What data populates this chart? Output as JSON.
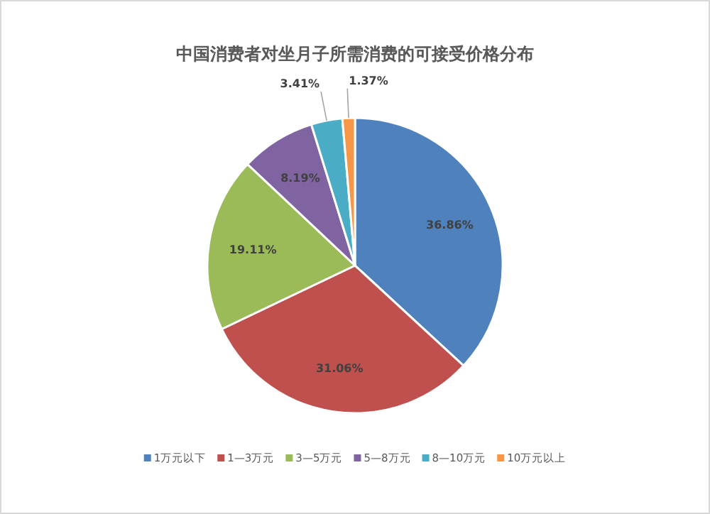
{
  "chart_data": {
    "type": "pie",
    "title": "中国消费者对坐月子所需消费的可接受价格分布",
    "categories": [
      "1万元以下",
      "1—3万元",
      "3—5万元",
      "5—8万元",
      "8—10万元",
      "10万元以上"
    ],
    "values": [
      36.86,
      31.06,
      19.11,
      8.19,
      3.41,
      1.37
    ],
    "value_labels": [
      "36.86%",
      "31.06%",
      "19.11%",
      "8.19%",
      "3.41%",
      "1.37%"
    ],
    "colors": [
      "#4f81bd",
      "#c0504d",
      "#9bbb59",
      "#8064a2",
      "#4bacc6",
      "#f79646"
    ],
    "data_labels": true,
    "legend": "bottom"
  }
}
